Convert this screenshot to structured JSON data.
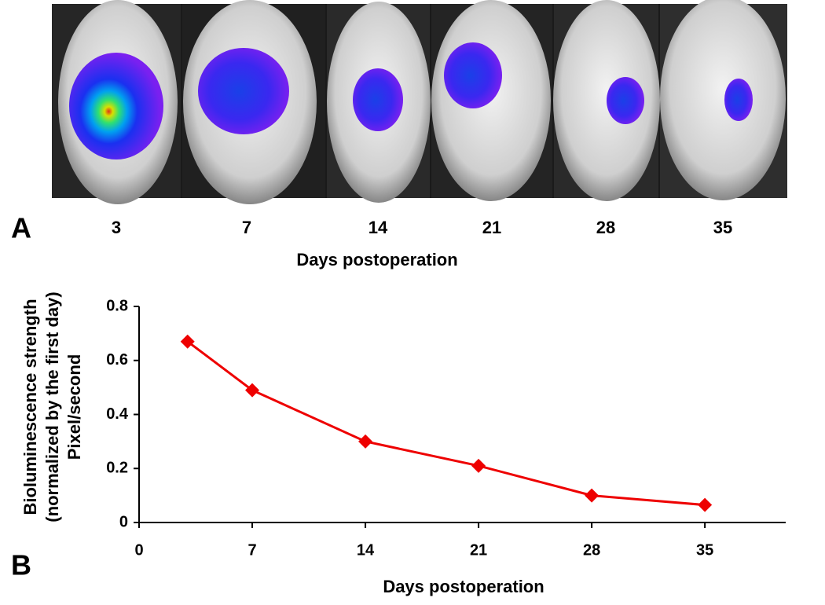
{
  "panel_a": {
    "label": "A",
    "image_labels": [
      "3",
      "7",
      "14",
      "21",
      "28",
      "35"
    ],
    "xlabel": "Days postoperation"
  },
  "chart_data": {
    "type": "line",
    "panel_label": "B",
    "xlabel": "Days postoperation",
    "ylabel": [
      "Bioluminescence strength",
      "(normalized by the first day)",
      "Pixel/second"
    ],
    "x": [
      3,
      7,
      14,
      21,
      28,
      35
    ],
    "series": [
      {
        "color": "#ee0000",
        "values": [
          0.67,
          0.49,
          0.3,
          0.21,
          0.1,
          0.065
        ]
      }
    ],
    "xlim": [
      0,
      40
    ],
    "xticks": [
      0,
      7,
      14,
      21,
      28,
      35
    ],
    "ylim": [
      0,
      0.8
    ],
    "yticks": [
      0,
      0.2,
      0.4,
      0.6,
      0.8
    ],
    "grid": false
  }
}
